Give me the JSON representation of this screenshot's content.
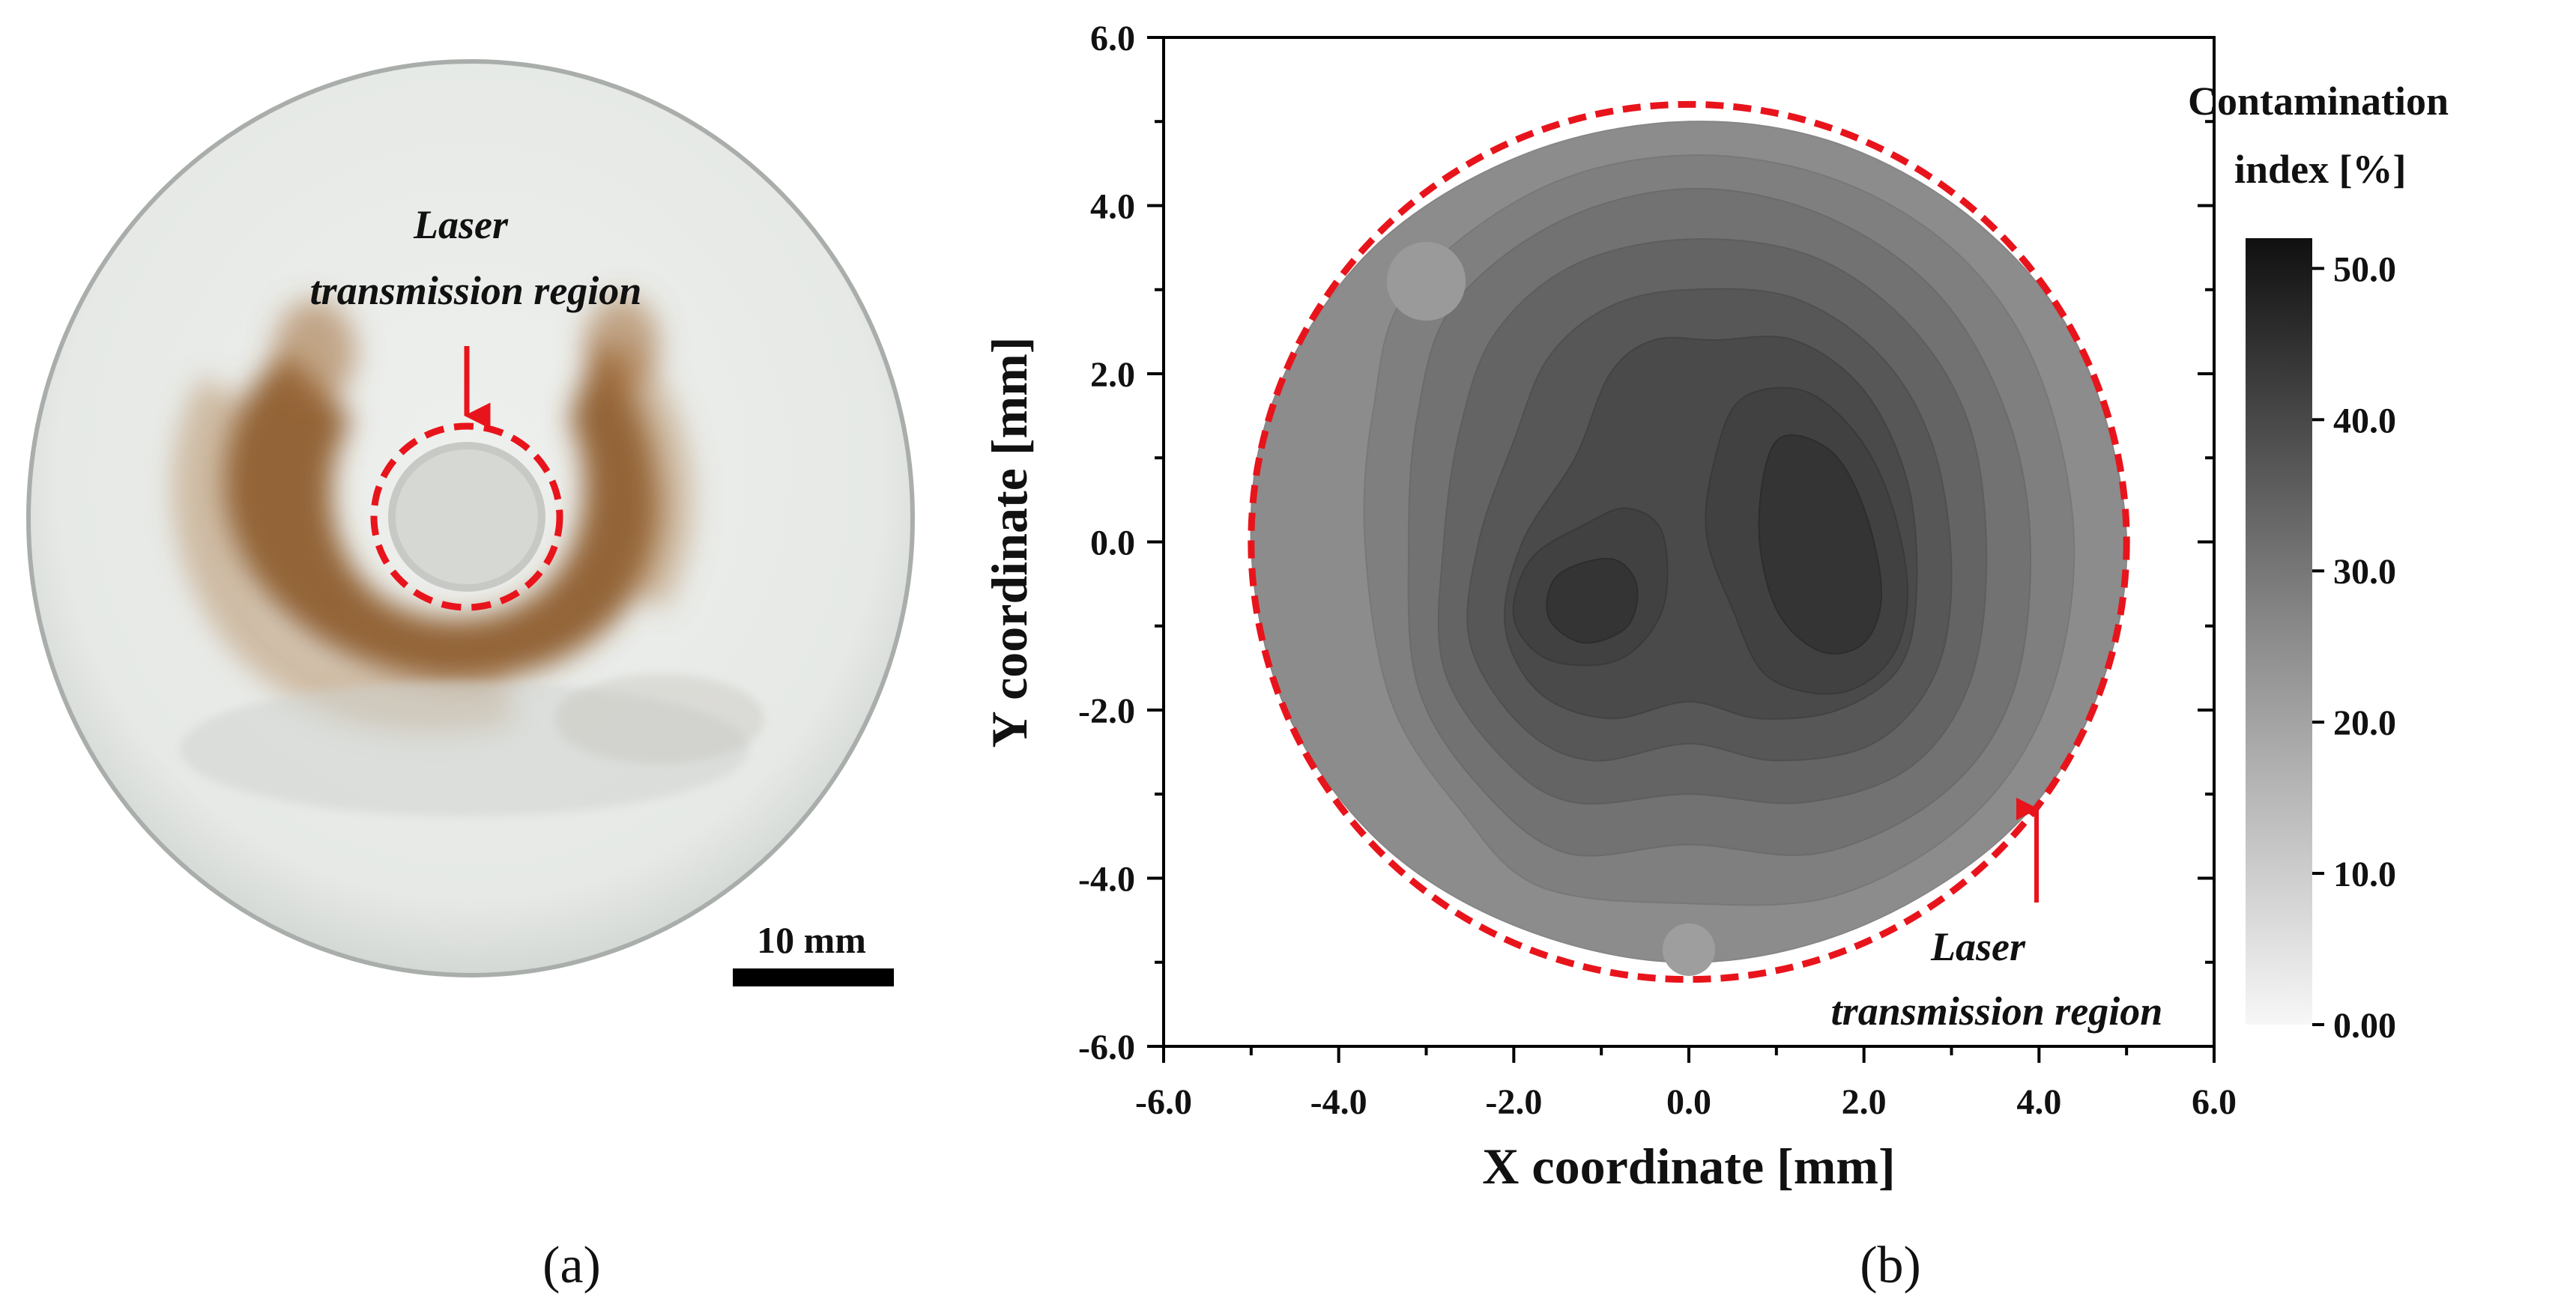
{
  "panel_a": {
    "annotation_line1": "Laser",
    "annotation_line2": "transmission region",
    "scale_label": "10 mm",
    "subfigure_label": "(a)"
  },
  "panel_b": {
    "annotation_line1": "Laser",
    "annotation_line2": "transmission region",
    "subfigure_label": "(b)"
  },
  "colors": {
    "highlight": "#e8141c",
    "stain": "#9a6a3a",
    "glass": "#e9ecea"
  },
  "chart_data": {
    "type": "heatmap",
    "title": "",
    "xlabel": "X coordinate [mm]",
    "ylabel": "Y coordinate [mm]",
    "xlim": [
      -6.0,
      6.0
    ],
    "ylim": [
      -6.0,
      6.0
    ],
    "xticks": [
      "-6.0",
      "-4.0",
      "-2.0",
      "0.0",
      "2.0",
      "4.0",
      "6.0"
    ],
    "yticks": [
      "-6.0",
      "-4.0",
      "-2.0",
      "0.0",
      "2.0",
      "4.0",
      "6.0"
    ],
    "region_radius_mm": 5.0,
    "colorbar": {
      "title_line1": "Contamination",
      "title_line2": "index [%]",
      "range": [
        0.0,
        52.0
      ],
      "ticks": [
        {
          "value": 0.0,
          "label": "0.00"
        },
        {
          "value": 10.0,
          "label": "10.0"
        },
        {
          "value": 20.0,
          "label": "20.0"
        },
        {
          "value": 30.0,
          "label": "30.0"
        },
        {
          "value": 40.0,
          "label": "40.0"
        },
        {
          "value": 50.0,
          "label": "50.0"
        }
      ]
    },
    "contours": [
      {
        "level": 24,
        "points": [
          [
            0.0,
            5.0
          ],
          [
            1.8,
            4.7
          ],
          [
            3.4,
            3.7
          ],
          [
            4.5,
            2.2
          ],
          [
            5.0,
            0.0
          ],
          [
            4.6,
            -2.0
          ],
          [
            3.6,
            -3.5
          ],
          [
            1.9,
            -4.6
          ],
          [
            0.0,
            -5.0
          ],
          [
            -1.9,
            -4.6
          ],
          [
            -3.5,
            -3.6
          ],
          [
            -4.6,
            -2.0
          ],
          [
            -5.0,
            0.0
          ],
          [
            -4.7,
            1.8
          ],
          [
            -3.6,
            3.5
          ],
          [
            -1.9,
            4.6
          ]
        ]
      },
      {
        "level": 27,
        "points": [
          [
            0.0,
            4.6
          ],
          [
            1.7,
            4.3
          ],
          [
            3.1,
            3.4
          ],
          [
            4.0,
            2.0
          ],
          [
            4.4,
            0.0
          ],
          [
            4.1,
            -1.9
          ],
          [
            3.2,
            -3.3
          ],
          [
            1.7,
            -4.2
          ],
          [
            0.0,
            -4.3
          ],
          [
            -1.7,
            -4.1
          ],
          [
            -2.6,
            -3.2
          ],
          [
            -3.4,
            -1.9
          ],
          [
            -3.7,
            0.0
          ],
          [
            -3.6,
            1.6
          ],
          [
            -3.2,
            3.0
          ],
          [
            -1.7,
            4.2
          ]
        ]
      },
      {
        "level": 30,
        "points": [
          [
            0.0,
            4.2
          ],
          [
            1.5,
            3.9
          ],
          [
            2.8,
            3.0
          ],
          [
            3.6,
            1.6
          ],
          [
            3.9,
            0.0
          ],
          [
            3.7,
            -1.8
          ],
          [
            2.9,
            -3.0
          ],
          [
            1.5,
            -3.7
          ],
          [
            0.0,
            -3.6
          ],
          [
            -1.4,
            -3.7
          ],
          [
            -2.4,
            -2.9
          ],
          [
            -3.1,
            -1.7
          ],
          [
            -3.2,
            0.0
          ],
          [
            -3.1,
            1.5
          ],
          [
            -2.7,
            2.8
          ],
          [
            -1.5,
            3.8
          ]
        ]
      },
      {
        "level": 33,
        "points": [
          [
            0.0,
            3.6
          ],
          [
            1.4,
            3.4
          ],
          [
            2.5,
            2.6
          ],
          [
            3.2,
            1.4
          ],
          [
            3.4,
            -0.2
          ],
          [
            3.2,
            -1.7
          ],
          [
            2.5,
            -2.7
          ],
          [
            1.3,
            -3.1
          ],
          [
            0.0,
            -3.0
          ],
          [
            -1.3,
            -3.1
          ],
          [
            -2.1,
            -2.6
          ],
          [
            -2.8,
            -1.5
          ],
          [
            -2.8,
            0.0
          ],
          [
            -2.6,
            1.4
          ],
          [
            -2.2,
            2.5
          ],
          [
            -1.3,
            3.3
          ]
        ]
      },
      {
        "level": 36,
        "points": [
          [
            0.0,
            3.0
          ],
          [
            1.2,
            2.9
          ],
          [
            2.2,
            2.2
          ],
          [
            2.8,
            1.1
          ],
          [
            3.0,
            -0.4
          ],
          [
            2.8,
            -1.6
          ],
          [
            2.1,
            -2.4
          ],
          [
            1.0,
            -2.6
          ],
          [
            0.0,
            -2.4
          ],
          [
            -1.1,
            -2.6
          ],
          [
            -1.9,
            -2.2
          ],
          [
            -2.5,
            -1.2
          ],
          [
            -2.4,
            0.0
          ],
          [
            -2.0,
            1.2
          ],
          [
            -1.6,
            2.2
          ],
          [
            -0.9,
            2.8
          ]
        ]
      },
      {
        "level": 39,
        "points": [
          [
            0.3,
            2.4
          ],
          [
            1.2,
            2.4
          ],
          [
            2.0,
            1.8
          ],
          [
            2.5,
            0.7
          ],
          [
            2.6,
            -0.6
          ],
          [
            2.4,
            -1.5
          ],
          [
            1.7,
            -2.0
          ],
          [
            0.8,
            -2.1
          ],
          [
            0.0,
            -1.9
          ],
          [
            -0.9,
            -2.1
          ],
          [
            -1.7,
            -1.8
          ],
          [
            -2.1,
            -1.0
          ],
          [
            -1.9,
            0.0
          ],
          [
            -1.3,
            1.0
          ],
          [
            -0.9,
            2.0
          ],
          [
            -0.4,
            2.4
          ]
        ]
      },
      {
        "level": 41,
        "points": [
          [
            0.6,
            1.7
          ],
          [
            1.3,
            1.8
          ],
          [
            1.9,
            1.3
          ],
          [
            2.3,
            0.5
          ],
          [
            2.5,
            -0.6
          ],
          [
            2.3,
            -1.4
          ],
          [
            1.7,
            -1.8
          ],
          [
            0.9,
            -1.6
          ],
          [
            0.5,
            -0.8
          ],
          [
            0.2,
            0.1
          ],
          [
            0.3,
            1.0
          ]
        ]
      },
      {
        "level": 41,
        "points": [
          [
            -0.7,
            0.4
          ],
          [
            -0.3,
            0.1
          ],
          [
            -0.3,
            -0.8
          ],
          [
            -0.8,
            -1.4
          ],
          [
            -1.6,
            -1.4
          ],
          [
            -2.0,
            -0.9
          ],
          [
            -1.8,
            -0.2
          ],
          [
            -1.2,
            0.2
          ]
        ]
      },
      {
        "level": 44,
        "points": [
          [
            1.0,
            1.2
          ],
          [
            1.6,
            1.1
          ],
          [
            2.0,
            0.4
          ],
          [
            2.2,
            -0.6
          ],
          [
            2.0,
            -1.2
          ],
          [
            1.5,
            -1.3
          ],
          [
            1.0,
            -0.8
          ],
          [
            0.8,
            0.2
          ]
        ]
      },
      {
        "level": 44,
        "points": [
          [
            -0.9,
            -0.2
          ],
          [
            -0.6,
            -0.5
          ],
          [
            -0.7,
            -1.0
          ],
          [
            -1.2,
            -1.2
          ],
          [
            -1.6,
            -0.9
          ],
          [
            -1.5,
            -0.4
          ]
        ]
      }
    ],
    "light_spots": [
      {
        "x": -3.0,
        "y": 3.1,
        "r": 0.45,
        "level": 21
      },
      {
        "x": 0.0,
        "y": -4.85,
        "r": 0.3,
        "level": 20
      }
    ]
  }
}
